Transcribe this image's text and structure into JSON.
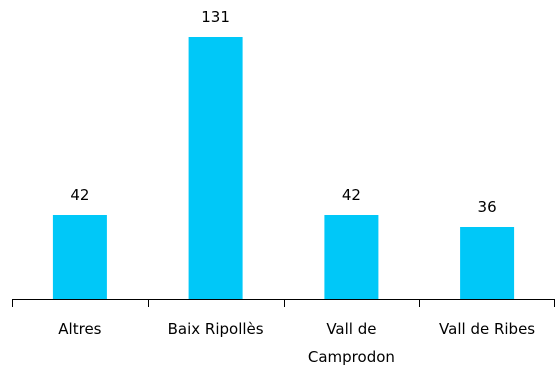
{
  "chart_data": {
    "type": "bar",
    "categories": [
      [
        "Altres"
      ],
      [
        "Baix Ripollès"
      ],
      [
        "Vall de",
        "Camprodon"
      ],
      [
        "Vall de Ribes"
      ]
    ],
    "values": [
      42,
      131,
      42,
      36
    ],
    "data_labels": [
      "42",
      "131",
      "42",
      "36"
    ],
    "title": "",
    "xlabel": "",
    "ylabel": "",
    "ylim": [
      0,
      131
    ],
    "grid": false,
    "legend": "none",
    "bar_color": "#00c8f8"
  }
}
